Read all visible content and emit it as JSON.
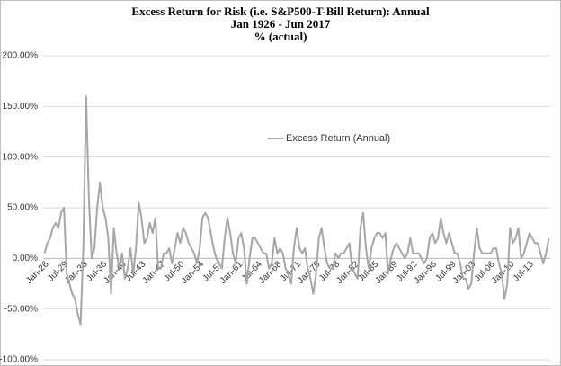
{
  "chart_data": {
    "type": "line",
    "title": "Excess Return for Risk (i.e. S&P500-T-Bill Return): Annual",
    "subtitle": [
      "Jan 1926 - Jun 2017",
      "% (actual)"
    ],
    "categories": [
      "Jan-26",
      null,
      null,
      null,
      null,
      null,
      null,
      "Jul-29",
      null,
      null,
      null,
      null,
      null,
      null,
      "Jan-33",
      null,
      null,
      null,
      null,
      null,
      null,
      "Jul-36",
      null,
      null,
      null,
      null,
      null,
      null,
      "Jan-40",
      null,
      null,
      null,
      null,
      null,
      null,
      "Jul-43",
      null,
      null,
      null,
      null,
      null,
      null,
      "Jan-47",
      null,
      null,
      null,
      null,
      null,
      null,
      "Jul-50",
      null,
      null,
      null,
      null,
      null,
      null,
      "Jan-54",
      null,
      null,
      null,
      null,
      null,
      null,
      "Jul-57",
      null,
      null,
      null,
      null,
      null,
      null,
      "Jan-61",
      null,
      null,
      null,
      null,
      null,
      null,
      "Jul-64",
      null,
      null,
      null,
      null,
      null,
      null,
      "Jan-68",
      null,
      null,
      null,
      null,
      null,
      null,
      "Jul-71",
      null,
      null,
      null,
      null,
      null,
      null,
      "Jan-75",
      null,
      null,
      null,
      null,
      null,
      null,
      "Jul-78",
      null,
      null,
      null,
      null,
      null,
      null,
      "Jan-82",
      null,
      null,
      null,
      null,
      null,
      null,
      "Jul-85",
      null,
      null,
      null,
      null,
      null,
      null,
      "Jan-89",
      null,
      null,
      null,
      null,
      null,
      null,
      "Jul-92",
      null,
      null,
      null,
      null,
      null,
      null,
      "Jan-96",
      null,
      null,
      null,
      null,
      null,
      null,
      "Jul-99",
      null,
      null,
      null,
      null,
      null,
      null,
      "Jan-03",
      null,
      null,
      null,
      null,
      null,
      null,
      "Jul-06",
      null,
      null,
      null,
      null,
      null,
      null,
      "Jan-10",
      null,
      null,
      null,
      null,
      null,
      null,
      "Jul-13",
      null,
      null,
      null,
      null,
      null,
      null,
      null
    ],
    "series": [
      {
        "name": "Excess Return (Annual)",
        "color": "#a6a6a6",
        "values": [
          5,
          15,
          20,
          30,
          35,
          30,
          45,
          50,
          -15,
          -25,
          -35,
          -40,
          -55,
          -65,
          10,
          160,
          60,
          0,
          10,
          50,
          75,
          50,
          40,
          20,
          -35,
          30,
          5,
          -10,
          5,
          -20,
          -10,
          10,
          -15,
          10,
          55,
          40,
          15,
          20,
          35,
          25,
          40,
          -10,
          -10,
          5,
          5,
          10,
          -5,
          10,
          25,
          15,
          30,
          25,
          15,
          10,
          5,
          -5,
          10,
          40,
          45,
          40,
          25,
          10,
          0,
          -5,
          -10,
          20,
          40,
          25,
          5,
          -5,
          20,
          25,
          10,
          -25,
          0,
          20,
          20,
          15,
          10,
          5,
          5,
          -10,
          -5,
          20,
          5,
          10,
          5,
          -10,
          -15,
          -25,
          10,
          30,
          10,
          5,
          10,
          -10,
          -20,
          -35,
          -15,
          20,
          30,
          10,
          -5,
          -10,
          -10,
          5,
          0,
          5,
          5,
          10,
          15,
          -10,
          -15,
          -20,
          30,
          45,
          10,
          -10,
          10,
          20,
          25,
          25,
          20,
          25,
          -15,
          0,
          10,
          15,
          10,
          5,
          0,
          5,
          20,
          5,
          5,
          5,
          0,
          -5,
          0,
          20,
          25,
          15,
          20,
          40,
          25,
          15,
          25,
          15,
          5,
          5,
          -5,
          -20,
          -20,
          -30,
          -25,
          5,
          30,
          10,
          5,
          5,
          5,
          5,
          10,
          10,
          -5,
          -15,
          -40,
          -25,
          30,
          15,
          20,
          30,
          0,
          5,
          15,
          25,
          20,
          15,
          15,
          5,
          -5,
          5,
          20
        ]
      }
    ],
    "ylim": [
      -100,
      200
    ],
    "yticks": [
      {
        "value": -100,
        "label": "-100.00%"
      },
      {
        "value": -50,
        "label": "-50.00%"
      },
      {
        "value": 0,
        "label": "0.00%"
      },
      {
        "value": 50,
        "label": "50.00%"
      },
      {
        "value": 100,
        "label": "100.00%"
      },
      {
        "value": 150,
        "label": "150.00%"
      },
      {
        "value": 200,
        "label": "200.00%"
      }
    ],
    "grid": true
  }
}
